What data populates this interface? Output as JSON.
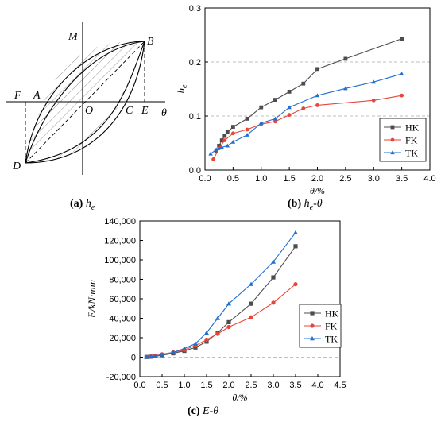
{
  "diagram_a": {
    "axis_x_label": "θ",
    "axis_y_label": "M",
    "points": {
      "A": "A",
      "B": "B",
      "C": "C",
      "D": "D",
      "E": "E",
      "F": "F",
      "O": "O"
    }
  },
  "captions": {
    "a_tag": "(a)",
    "a_text": "h",
    "b_tag": "(b)",
    "b_text": "h",
    "c_tag": "(c)",
    "c_text": "E-θ"
  },
  "chart_data": [
    {
      "type": "line",
      "id": "he_theta",
      "xlabel": "θ/%",
      "ylabel": "h",
      "ylabel_sub": "e",
      "xlim": [
        0,
        4.0
      ],
      "ylim": [
        0,
        0.3
      ],
      "x_ticks": [
        "0.0",
        "0.5",
        "1.0",
        "1.5",
        "2.0",
        "2.5",
        "3.0",
        "3.5",
        "4.0"
      ],
      "y_ticks": [
        "0.0",
        "0.1",
        "0.2",
        "0.3"
      ],
      "ref_lines_y": [
        0.1,
        0.2
      ],
      "legend_position": "bottom-right",
      "series": [
        {
          "name": "HK",
          "color": "#4d4d4d",
          "marker": "square",
          "x": [
            0.2,
            0.25,
            0.3,
            0.35,
            0.4,
            0.5,
            0.75,
            1.0,
            1.25,
            1.5,
            1.75,
            2.0,
            2.5,
            3.5
          ],
          "y": [
            0.035,
            0.045,
            0.055,
            0.063,
            0.07,
            0.08,
            0.095,
            0.116,
            0.13,
            0.145,
            0.16,
            0.187,
            0.206,
            0.243
          ]
        },
        {
          "name": "FK",
          "color": "#e8443a",
          "marker": "circle",
          "x": [
            0.15,
            0.25,
            0.35,
            0.5,
            0.75,
            1.0,
            1.25,
            1.5,
            1.75,
            2.0,
            3.0,
            3.5
          ],
          "y": [
            0.02,
            0.04,
            0.055,
            0.068,
            0.075,
            0.085,
            0.09,
            0.102,
            0.114,
            0.12,
            0.129,
            0.138
          ]
        },
        {
          "name": "TK",
          "color": "#1f6fd1",
          "marker": "triangle",
          "x": [
            0.1,
            0.2,
            0.3,
            0.4,
            0.5,
            0.75,
            1.0,
            1.25,
            1.5,
            2.0,
            2.5,
            3.0,
            3.5
          ],
          "y": [
            0.03,
            0.038,
            0.042,
            0.045,
            0.052,
            0.065,
            0.087,
            0.095,
            0.116,
            0.138,
            0.151,
            0.163,
            0.178
          ]
        }
      ]
    },
    {
      "type": "line",
      "id": "E_theta",
      "xlabel": "θ/%",
      "ylabel": "E/kN·mm",
      "xlim": [
        0,
        4.5
      ],
      "ylim": [
        -20000,
        140000
      ],
      "x_ticks": [
        "0.0",
        "0.5",
        "1.0",
        "1.5",
        "2.0",
        "2.5",
        "3.0",
        "3.5",
        "4.0",
        "4.5"
      ],
      "y_ticks": [
        "-20,000",
        "0",
        "20,000",
        "40,000",
        "60,000",
        "80,000",
        "100,000",
        "120,000",
        "140,000"
      ],
      "ref_lines_y": [
        0
      ],
      "legend_position": "right",
      "series": [
        {
          "name": "HK",
          "color": "#4d4d4d",
          "marker": "square",
          "x": [
            0.15,
            0.25,
            0.35,
            0.5,
            0.75,
            1.0,
            1.25,
            1.5,
            1.75,
            2.0,
            2.5,
            3.0,
            3.5
          ],
          "y": [
            200,
            500,
            1000,
            2000,
            4000,
            6500,
            10000,
            16000,
            25000,
            36000,
            55000,
            82000,
            114000
          ]
        },
        {
          "name": "FK",
          "color": "#e8443a",
          "marker": "circle",
          "x": [
            0.15,
            0.25,
            0.35,
            0.5,
            0.75,
            1.0,
            1.25,
            1.5,
            1.75,
            2.0,
            2.5,
            3.0,
            3.5
          ],
          "y": [
            300,
            800,
            1500,
            3000,
            5000,
            7500,
            12000,
            18000,
            24000,
            31000,
            41000,
            56000,
            75000
          ]
        },
        {
          "name": "TK",
          "color": "#1f6fd1",
          "marker": "triangle",
          "x": [
            0.15,
            0.25,
            0.35,
            0.5,
            0.75,
            1.0,
            1.25,
            1.5,
            1.75,
            2.0,
            2.5,
            3.0,
            3.5
          ],
          "y": [
            200,
            600,
            1200,
            2500,
            5000,
            9000,
            14000,
            25000,
            40000,
            55000,
            75000,
            98000,
            128000
          ]
        }
      ]
    }
  ]
}
